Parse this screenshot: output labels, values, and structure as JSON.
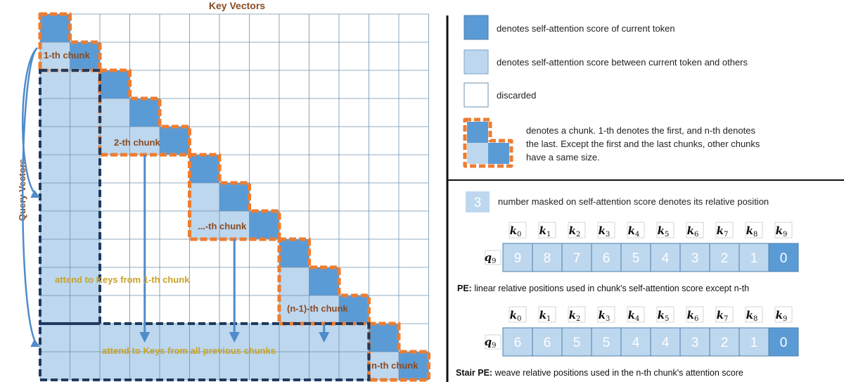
{
  "grid": {
    "title": "Key Vectors",
    "y_axis_label": "Query Vectors",
    "size": 13,
    "chunks": [
      {
        "label": "1-th chunk"
      },
      {
        "label": "2-th chunk"
      },
      {
        "label": "...-th chunk"
      },
      {
        "label": "(n-1)-th chunk"
      },
      {
        "label": "n-th chunk"
      }
    ],
    "attend_first": "attend to Keys from 1-th chunk",
    "attend_previous": "attend to Keys from all previous chunks"
  },
  "legend": {
    "current_token": "denotes self-attention score of current token",
    "between_tokens": "denotes self-attention score between current token and others",
    "discarded": "discarded",
    "chunk_lines": [
      "denotes a chunk. 1-th denotes the first, and n-th denotes",
      "the last.  Except the first and the last chunks, other chunks",
      "have a same size."
    ],
    "number_example": "3",
    "number_text": "number masked on self-attention score denotes its relative position"
  },
  "pe_rows": [
    {
      "query": "q",
      "query_sub": "9",
      "keys": [
        {
          "k": "k",
          "s": "0"
        },
        {
          "k": "k",
          "s": "1"
        },
        {
          "k": "k",
          "s": "2"
        },
        {
          "k": "k",
          "s": "3"
        },
        {
          "k": "k",
          "s": "4"
        },
        {
          "k": "k",
          "s": "5"
        },
        {
          "k": "k",
          "s": "6"
        },
        {
          "k": "k",
          "s": "7"
        },
        {
          "k": "k",
          "s": "8"
        },
        {
          "k": "k",
          "s": "9"
        }
      ],
      "values": [
        "9",
        "8",
        "7",
        "6",
        "5",
        "4",
        "3",
        "2",
        "1",
        "0"
      ],
      "caption_bold": "PE:",
      "caption_rest": " linear relative positions used in chunk's self-attention score except n-th"
    },
    {
      "query": "q",
      "query_sub": "9",
      "keys": [
        {
          "k": "k",
          "s": "0"
        },
        {
          "k": "k",
          "s": "1"
        },
        {
          "k": "k",
          "s": "2"
        },
        {
          "k": "k",
          "s": "3"
        },
        {
          "k": "k",
          "s": "4"
        },
        {
          "k": "k",
          "s": "5"
        },
        {
          "k": "k",
          "s": "6"
        },
        {
          "k": "k",
          "s": "7"
        },
        {
          "k": "k",
          "s": "8"
        },
        {
          "k": "k",
          "s": "9"
        }
      ],
      "values": [
        "6",
        "6",
        "5",
        "5",
        "4",
        "4",
        "3",
        "2",
        "1",
        "0"
      ],
      "caption_bold": "Stair PE:",
      "caption_rest": " weave relative positions used in the n-th chunk's attention score"
    }
  ],
  "colors": {
    "dark_blue": "#5b9bd5",
    "light_blue": "#bdd7ee",
    "orange": "#ed7d31",
    "navy": "#1f3a60",
    "arrow": "#4f8cc9",
    "grid_line": "#6f90ad",
    "label_brown": "#8a4a22",
    "label_gold": "#c9a227"
  }
}
